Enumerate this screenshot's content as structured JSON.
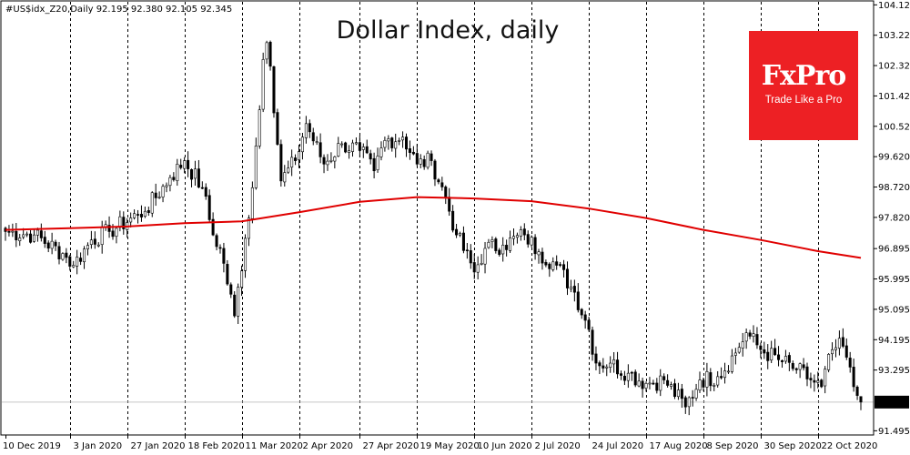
{
  "header": {
    "symbol_line": "#US$idx_Z20,Daily  92.195 92.380 92.105 92.345"
  },
  "logo": {
    "name": "FxPro",
    "tagline": "Trade Like a Pro",
    "color": "#ed2024"
  },
  "chart_data": {
    "type": "candlestick",
    "title": "Dollar  Index, daily",
    "symbol": "#US$idx_Z20",
    "timeframe": "Daily",
    "ohlc": {
      "open": 92.195,
      "high": 92.38,
      "low": 92.105,
      "close": 92.345
    },
    "last_price": "92.345",
    "ylim": [
      91.37,
      104.21
    ],
    "y_ticks": [
      "104.120",
      "103.220",
      "102.320",
      "101.420",
      "100.520",
      "99.620",
      "98.720",
      "97.820",
      "96.895",
      "95.995",
      "95.095",
      "94.195",
      "93.295",
      "91.495"
    ],
    "x_ticks": [
      "10 Dec 2019",
      "3 Jan 2020",
      "27 Jan 2020",
      "18 Feb 2020",
      "11 Mar 2020",
      "2 Apr 2020",
      "27 Apr 2020",
      "19 May 2020",
      "10 Jun 2020",
      "2 Jul 2020",
      "24 Jul 2020",
      "17 Aug 2020",
      "8 Sep 2020",
      "30 Sep 2020",
      "22 Oct 2020"
    ],
    "vertical_grid_dates": [
      "3 Jan 2020",
      "27 Jan 2020",
      "18 Feb 2020",
      "11 Mar 2020",
      "2 Apr 2020",
      "27 Apr 2020",
      "19 May 2020",
      "10 Jun 2020",
      "2 Jul 2020",
      "24 Jul 2020",
      "17 Aug 2020",
      "8 Sep 2020",
      "30 Sep 2020",
      "22 Oct 2020"
    ],
    "price_series": {
      "name": "",
      "points": [
        [
          "10 Dec 2019",
          97.4
        ],
        [
          "20 Dec 2019",
          97.3
        ],
        [
          "1 Jan 2020",
          96.75
        ],
        [
          "6 Jan 2020",
          96.4
        ],
        [
          "13 Jan 2020",
          97.15
        ],
        [
          "20 Jan 2020",
          97.4
        ],
        [
          "30 Jan 2020",
          97.9
        ],
        [
          "3 Feb 2020",
          98.0
        ],
        [
          "12 Feb 2020",
          99.0
        ],
        [
          "18 Feb 2020",
          99.5
        ],
        [
          "25 Feb 2020",
          98.7
        ],
        [
          "28 Feb 2020",
          97.3
        ],
        [
          "3 Mar 2020",
          96.9
        ],
        [
          "9 Mar 2020",
          94.9
        ],
        [
          "12 Mar 2020",
          97.2
        ],
        [
          "16 Mar 2020",
          98.7
        ],
        [
          "19 Mar 2020",
          102.5
        ],
        [
          "20 Mar 2020",
          103.0
        ],
        [
          "23 Mar 2020",
          102.3
        ],
        [
          "26 Mar 2020",
          98.9
        ],
        [
          "1 Apr 2020",
          99.5
        ],
        [
          "6 Apr 2020",
          100.6
        ],
        [
          "13 Apr 2020",
          99.4
        ],
        [
          "20 Apr 2020",
          100.0
        ],
        [
          "27 Apr 2020",
          99.8
        ],
        [
          "1 May 2020",
          99.2
        ],
        [
          "6 May 2020",
          100.1
        ],
        [
          "13 May 2020",
          100.2
        ],
        [
          "19 May 2020",
          99.4
        ],
        [
          "25 May 2020",
          99.5
        ],
        [
          "29 May 2020",
          98.4
        ],
        [
          "3 Jun 2020",
          97.3
        ],
        [
          "10 Jun 2020",
          96.2
        ],
        [
          "15 Jun 2020",
          96.9
        ],
        [
          "22 Jun 2020",
          97.0
        ],
        [
          "30 Jun 2020",
          97.3
        ],
        [
          "6 Jul 2020",
          96.8
        ],
        [
          "13 Jul 2020",
          96.4
        ],
        [
          "20 Jul 2020",
          95.6
        ],
        [
          "24 Jul 2020",
          94.5
        ],
        [
          "28 Jul 2020",
          93.5
        ],
        [
          "3 Aug 2020",
          93.5
        ],
        [
          "10 Aug 2020",
          93.2
        ],
        [
          "17 Aug 2020",
          92.9
        ],
        [
          "24 Aug 2020",
          93.0
        ],
        [
          "1 Sep 2020",
          92.2
        ],
        [
          "7 Sep 2020",
          93.0
        ],
        [
          "14 Sep 2020",
          93.1
        ],
        [
          "21 Sep 2020",
          93.8
        ],
        [
          "24 Sep 2020",
          94.4
        ],
        [
          "30 Sep 2020",
          93.9
        ],
        [
          "7 Oct 2020",
          93.6
        ],
        [
          "14 Oct 2020",
          93.3
        ],
        [
          "20 Oct 2020",
          93.0
        ],
        [
          "23 Oct 2020",
          92.8
        ],
        [
          "28 Oct 2020",
          93.9
        ],
        [
          "2 Nov 2020",
          94.0
        ],
        [
          "5 Nov 2020",
          92.8
        ],
        [
          "9 Nov 2020",
          92.345
        ]
      ]
    },
    "moving_average": {
      "name": "",
      "color": "#e00000",
      "points": [
        [
          "10 Dec 2019",
          97.45
        ],
        [
          "3 Jan 2020",
          97.5
        ],
        [
          "27 Jan 2020",
          97.55
        ],
        [
          "18 Feb 2020",
          97.65
        ],
        [
          "11 Mar 2020",
          97.7
        ],
        [
          "2 Apr 2020",
          97.97
        ],
        [
          "27 Apr 2020",
          98.28
        ],
        [
          "19 May 2020",
          98.42
        ],
        [
          "10 Jun 2020",
          98.38
        ],
        [
          "2 Jul 2020",
          98.3
        ],
        [
          "24 Jul 2020",
          98.08
        ],
        [
          "17 Aug 2020",
          97.8
        ],
        [
          "8 Sep 2020",
          97.45
        ],
        [
          "30 Sep 2020",
          97.15
        ],
        [
          "22 Oct 2020",
          96.82
        ],
        [
          "9 Nov 2020",
          96.62
        ]
      ]
    },
    "grid": "vertical dashed",
    "axis_position": "right"
  }
}
